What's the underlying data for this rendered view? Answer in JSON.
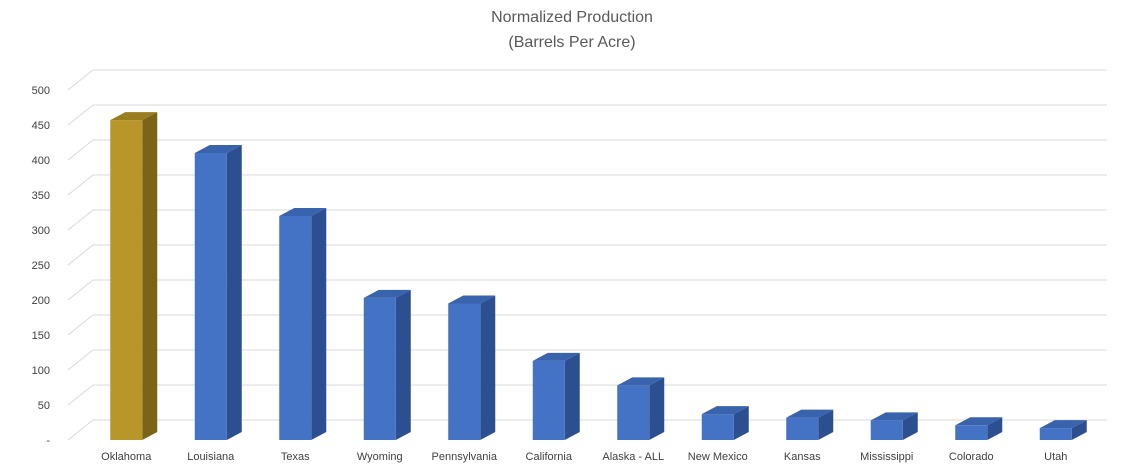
{
  "chart_data": {
    "type": "bar",
    "title": "Normalized Production",
    "subtitle": "(Barrels Per Acre)",
    "xlabel": "",
    "ylabel": "",
    "ylim": [
      0,
      500
    ],
    "grid": true,
    "legend": "none",
    "y_ticks": [
      {
        "value": 500,
        "label": "500"
      },
      {
        "value": 450,
        "label": "450"
      },
      {
        "value": 400,
        "label": "400"
      },
      {
        "value": 350,
        "label": "350"
      },
      {
        "value": 300,
        "label": "300"
      },
      {
        "value": 250,
        "label": "250"
      },
      {
        "value": 200,
        "label": "200"
      },
      {
        "value": 150,
        "label": "150"
      },
      {
        "value": 100,
        "label": "100"
      },
      {
        "value": 50,
        "label": "50"
      },
      {
        "value": 0,
        "label": "-"
      }
    ],
    "categories": [
      "Oklahoma",
      "Louisiana",
      "Texas",
      "Wyoming",
      "Pennsylvania",
      "California",
      "Alaska - ALL",
      "New Mexico",
      "Kansas",
      "Mississippi",
      "Colorado",
      "Utah"
    ],
    "values": [
      457,
      410,
      320,
      203,
      195,
      113,
      78,
      37,
      32,
      28,
      21,
      17
    ],
    "colors": {
      "highlight": "#b8962a",
      "highlight_side": "#7a6418",
      "highlight_top": "#9a7d1f",
      "bar": "#4472c4",
      "bar_side": "#2c4f8f",
      "bar_top": "#3a63ad",
      "grid": "#d9d9d9",
      "text": "#404040",
      "title": "#595959"
    },
    "highlight_index": 0
  }
}
